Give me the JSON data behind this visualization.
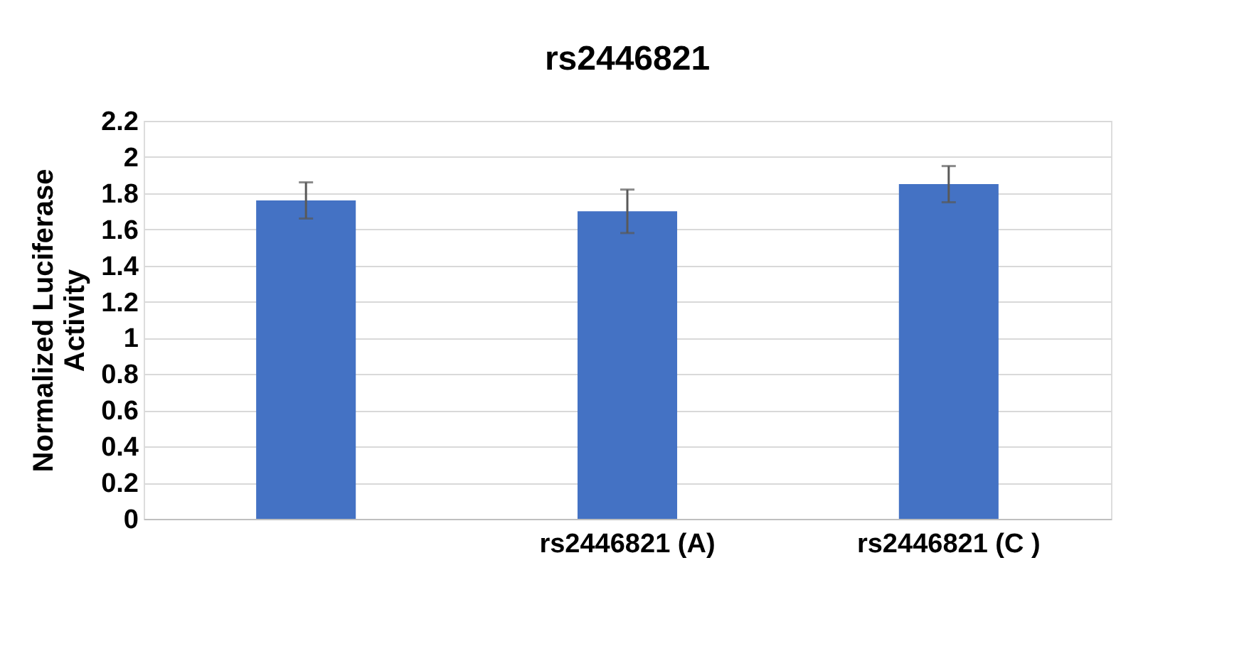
{
  "chart_data": {
    "type": "bar",
    "title": "rs2446821",
    "ylabel": "Normalized Luciferase Activity",
    "categories": [
      null,
      "rs2446821 (A)",
      "rs2446821 (C )"
    ],
    "values": [
      1.76,
      1.7,
      1.85
    ],
    "errors": [
      0.1,
      0.12,
      0.1
    ],
    "color": "#4472c4",
    "ylim": [
      0,
      2.2
    ],
    "yticks": [
      0,
      0.2,
      0.4,
      0.6,
      0.8,
      1,
      1.2,
      1.4,
      1.6,
      1.8,
      2,
      2.2
    ],
    "grid": "y"
  }
}
